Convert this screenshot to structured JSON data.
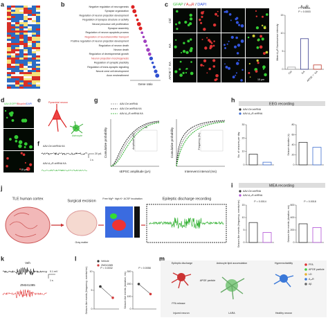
{
  "panels": {
    "a": {
      "letter": "a"
    },
    "b": {
      "letter": "b",
      "terms": [
        "Negative regulation of neurogenesis",
        "Synapse organization",
        "Regulation of neuron projection development",
        "Regulation of synapse structure or activity",
        "Neural precursor cell proliferation",
        "Synapse assembly",
        "Regulation of neuron apoptotic process",
        "Regulation of neurotransmitter transport",
        "Positive regulation of neuron projection development",
        "Regulation of neuron death",
        "Neuron death",
        "Regulation of developmental growth",
        "Neuron projection morphogenesis",
        "Regulation of synaptic plasticity",
        "Regulation of trans-synaptic signaling",
        "Neural crest cell development",
        "Axon ensheathment"
      ],
      "x_label": "Gene ratio"
    },
    "c": {
      "letter": "c",
      "stain": [
        "GFAP",
        "A₂ₐR",
        "DAPI"
      ],
      "rows": [
        "Ctrl",
        "KA",
        "APOE⁻/⁻ KA"
      ],
      "scale": "15 μm"
    },
    "d": {
      "letter": "d",
      "stain": [
        "AAV-EGFP",
        "Bicyclin",
        "DAPI"
      ],
      "scale": "15 μm"
    },
    "e": {
      "letter": "e",
      "neuron": "Pyramidal neuron",
      "astrocyte": "Astrocyte"
    },
    "f": {
      "letter": "f",
      "traces": [
        "AAV-Ctrl-shRNA KA",
        "AAV-A₂ₐR-shRNA KA"
      ],
      "scale_y": "20 pA",
      "scale_x": "1 s"
    },
    "g": {
      "letter": "g",
      "legend": [
        "AAV-Ctrl-shRNA",
        "AAV-Ctrl-shRNA KA",
        "AAV-A₂ₐR-shRNA KA"
      ],
      "y_label": "Cumulative probability",
      "x_labels": [
        "sEPSC amplitude (pA)",
        "Interevent interval (ms)"
      ],
      "inset_labels": [
        "Amplitude (pA)",
        "Frequency (Hz)"
      ],
      "ns": "ns"
    },
    "h": {
      "letter": "h",
      "title": "EEG recording"
    },
    "i": {
      "letter": "i",
      "title": "MEA recording"
    },
    "j": {
      "letter": "j",
      "steps": [
        "TLE human cortex",
        "Surgical excision",
        "Free Mg²⁺ high K⁺ ACSF incubation",
        "Epileptic discharge recording"
      ],
      "gray": "Gray matter"
    },
    "k": {
      "letter": "k",
      "traces": [
        "Veh",
        "ZM241385"
      ],
      "scale_y": "0.1 mV",
      "scale_x": "1 s"
    },
    "l": {
      "letter": "l"
    },
    "m": {
      "letter": "m",
      "labels": [
        "Epileptic discharge",
        "Astrocyte lipid accumulation",
        "Hyperexcitability",
        "APOE particle",
        "FFA release",
        "Injured neuron",
        "LARA",
        "Healthy neuron"
      ],
      "legend": [
        "FFA",
        "APOE particle",
        "LD",
        "A₂ₐR",
        "Aβ"
      ]
    }
  },
  "chart_data": [
    {
      "type": "bar",
      "title": "A₂ₐR",
      "y_label": "Mean A₂ₐR fluorescence intensity",
      "categories": [
        "Ctrl",
        "KA",
        "APOE⁻/⁻ KA"
      ],
      "values": [
        0.6,
        8.5,
        1.2
      ],
      "colors": [
        "#9e9e9e",
        "#3b3f8f",
        "#c0392b"
      ],
      "ylim": [
        0,
        15
      ],
      "yticks": [
        0,
        5,
        10,
        15
      ],
      "annotations": [
        "P = 0.0001",
        "P = 0.0003"
      ]
    },
    {
      "type": "bar",
      "y_label": "No. of seizures per day",
      "categories": [
        "AAV-Ctrl-shRNA",
        "AAV-A₂ₐR-shRNA"
      ],
      "values": [
        8,
        2
      ],
      "colors": [
        "#333333",
        "#3f6fd1"
      ],
      "ylim": [
        0,
        30
      ],
      "yticks": [
        0,
        10,
        20,
        30
      ]
    },
    {
      "type": "bar",
      "y_label": "Seizure duration (s)",
      "values": [
        45,
        35
      ],
      "colors": [
        "#333333",
        "#3f6fd1"
      ],
      "ylim": [
        0,
        80
      ],
      "yticks": [
        0,
        20,
        40,
        60,
        80
      ]
    },
    {
      "type": "bar",
      "y_label": "Seizure-like events (frequency; events/min)",
      "categories": [
        "AAV-Ctrl-shRNA",
        "AAV-A₂ₐR-shRNA"
      ],
      "values": [
        8,
        4
      ],
      "colors": [
        "#333333",
        "#b04fd6"
      ],
      "ylim": [
        0,
        15
      ],
      "yticks": [
        0,
        5,
        10,
        15
      ],
      "annotations": [
        "P = 0.0014"
      ]
    },
    {
      "type": "bar",
      "y_label": "Seizure-like events (duration; ms)",
      "values": [
        300,
        240
      ],
      "colors": [
        "#333333",
        "#b04fd6"
      ],
      "ylim": [
        0,
        600
      ],
      "yticks": [
        0,
        200,
        400,
        600
      ],
      "annotations": [
        "P = 0.0018"
      ]
    },
    {
      "type": "line",
      "y_label": "Seizure-like events (frequency; events/min)",
      "categories": [
        "Vehicle",
        "ZM241385"
      ],
      "values": [
        6,
        3
      ],
      "colors": [
        "#333333",
        "#d33c3c"
      ],
      "ylim": [
        0,
        10
      ],
      "yticks": [
        0,
        5,
        10
      ],
      "annotations": [
        "P = 0.0032"
      ]
    },
    {
      "type": "line",
      "y_label": "Seizure-like events (duration; ms)",
      "values": [
        200,
        120
      ],
      "colors": [
        "#333333",
        "#d33c3c"
      ],
      "ylim": [
        0,
        300
      ],
      "yticks": [
        0,
        100,
        200,
        300
      ],
      "annotations": [
        "P = 0.0058"
      ]
    }
  ]
}
